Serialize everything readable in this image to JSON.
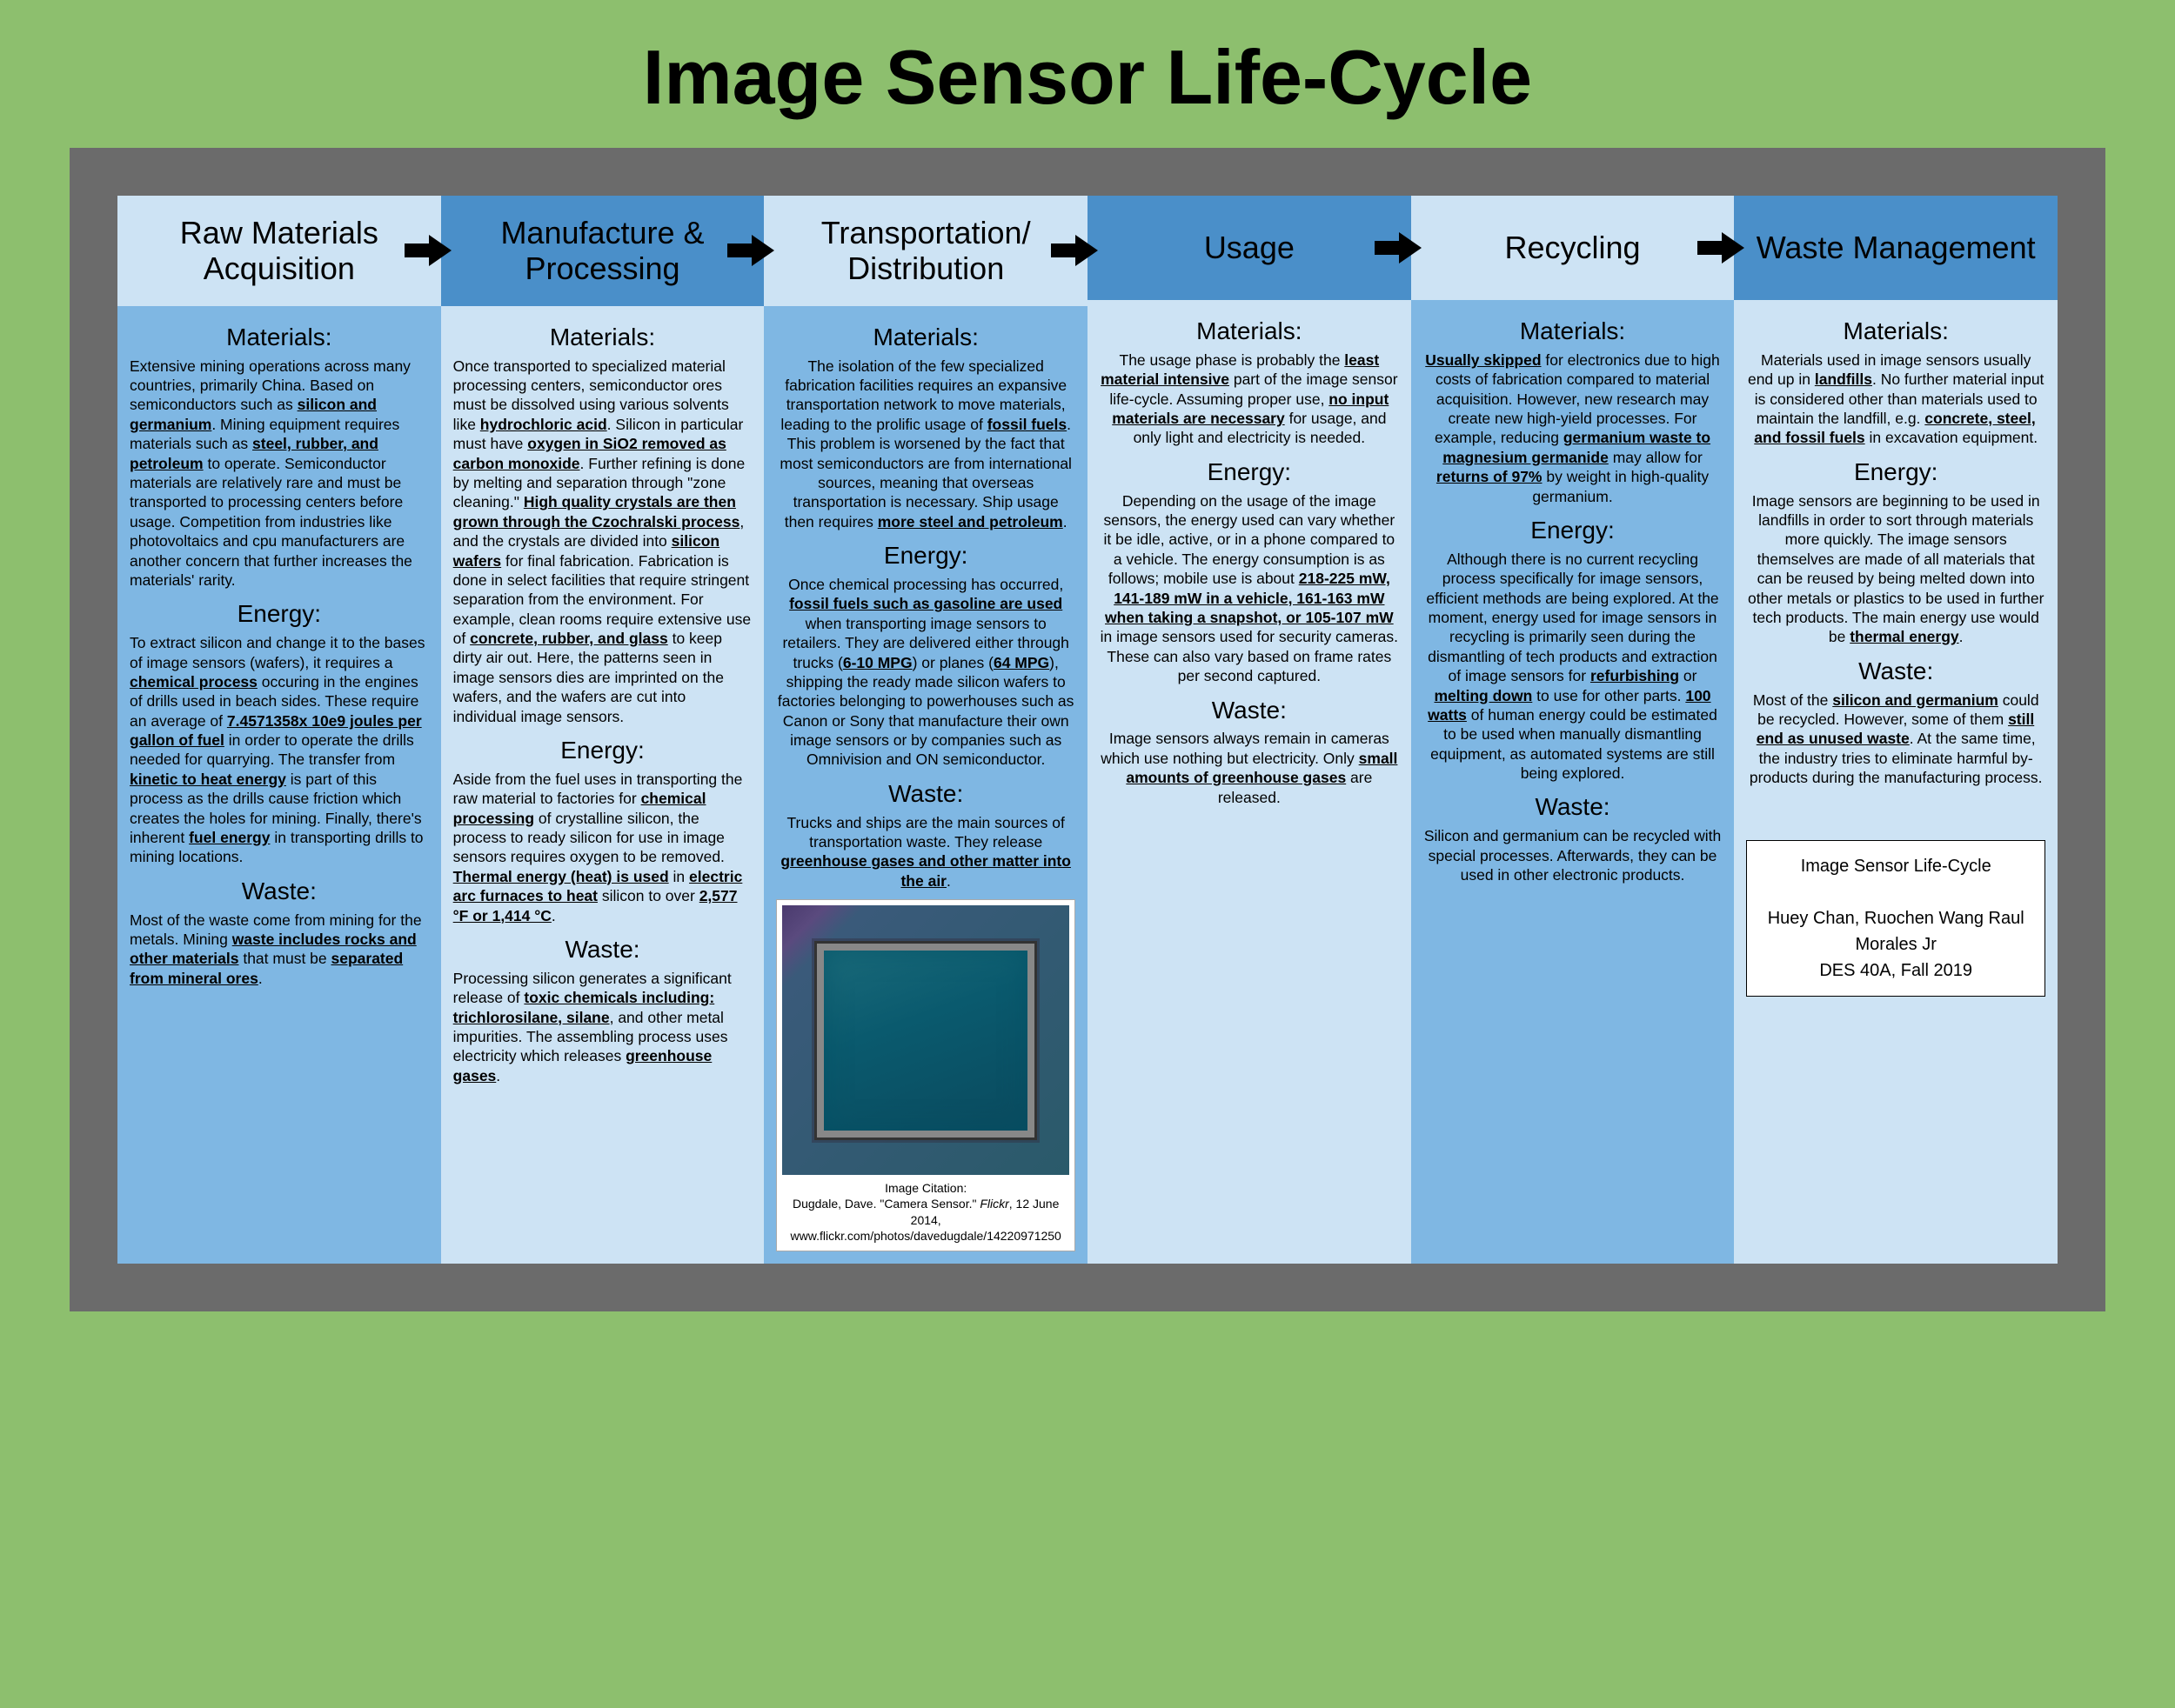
{
  "title": "Image Sensor Life-Cycle",
  "colors": {
    "page_bg": "#8dbf6e",
    "frame_bg": "#6b6b6b",
    "col_light": "#cde3f4",
    "col_mid": "#7fb7e3",
    "col_dark": "#4a8fc9",
    "arrow": "#000000"
  },
  "columns": [
    {
      "header": "Raw Materials Acquisition",
      "header_bg": "#cde3f4",
      "body_bg": "#7fb7e3",
      "has_arrow": true,
      "sections": [
        {
          "subhead": "Materials:",
          "html": "Extensive mining operations across many countries, primarily China. Based on semiconductors such as <span class='u'>silicon and germanium</span>. Mining equipment requires materials such as <span class='u'>steel, rubber, and petroleum</span> to operate. Semiconductor materials are relatively rare and must be transported to processing centers before usage. Competition from industries like photovoltaics and cpu manufacturers are another concern that further increases the materials' rarity."
        },
        {
          "subhead": "Energy:",
          "html": "To extract silicon and change it to the bases of image sensors (wafers), it requires a <span class='u'>chemical process</span> occuring in the engines of drills used in beach sides. These require an average of <span class='u'>7.4571358x 10e9 joules per gallon of fuel</span> in order to operate the drills needed for quarrying. The transfer from <span class='u'>kinetic to heat energy</span> is part of this process as the drills cause friction which creates the holes for mining. Finally, there's inherent <span class='u'>fuel energy</span> in transporting drills to mining locations."
        },
        {
          "subhead": "Waste:",
          "html": "Most of the waste come from mining for the metals. Mining <span class='u'>waste includes rocks and other materials</span> that must be <span class='u'>separated from mineral ores</span>."
        }
      ]
    },
    {
      "header": "Manufacture & Processing",
      "header_bg": "#4a8fc9",
      "body_bg": "#cde3f4",
      "has_arrow": true,
      "sections": [
        {
          "subhead": "Materials:",
          "html": "Once transported to specialized material processing centers, semiconductor ores must be dissolved using various solvents like <span class='u'>hydrochloric acid</span>. Silicon in particular must have <span class='u'>oxygen in SiO2 removed as carbon monoxide</span>. Further refining is done by melting and separation through \"zone cleaning.\" <span class='u'>High quality crystals are then grown through the Czochralski process</span>, and the crystals are divided into <span class='u'>silicon wafers</span> for final fabrication. Fabrication is done in select facilities that require stringent separation from the environment. For example, clean rooms require extensive use of <span class='u'>concrete, rubber, and glass</span> to keep dirty air out. Here, the patterns seen in image sensors dies are imprinted on the wafers, and the wafers are cut into individual image sensors."
        },
        {
          "subhead": "Energy:",
          "html": "Aside from the fuel uses in transporting the raw material to factories for <span class='u'>chemical processing</span> of crystalline silicon, the process to ready silicon for use in image sensors requires oxygen to be removed. <span class='u'>Thermal energy (heat) is used</span> in <span class='u'>electric arc furnaces to heat</span> silicon to over <span class='u'>2,577 °F or 1,414 °C</span>."
        },
        {
          "subhead": "Waste:",
          "html": "Processing silicon generates a significant release of <span class='u'>toxic chemicals including: trichlorosilane, silane</span>, and other metal impurities. The assembling process uses electricity which releases <span class='u'>greenhouse gases</span>."
        }
      ]
    },
    {
      "header": "Transportation/ Distribution",
      "header_bg": "#cde3f4",
      "body_bg": "#7fb7e3",
      "has_arrow": true,
      "sections": [
        {
          "subhead": "Materials:",
          "center": true,
          "html": "The isolation of the few specialized fabrication facilities requires an expansive transportation network to move materials, leading to the prolific usage of <span class='u'>fossil fuels</span>. This problem is worsened by the fact that most semiconductors are from international sources, meaning that overseas transportation is necessary. Ship usage then requires <span class='u'>more steel and petroleum</span>."
        },
        {
          "subhead": "Energy:",
          "center": true,
          "html": "Once chemical processing has occurred, <span class='u'>fossil fuels such as gasoline are used</span> when transporting image sensors to retailers. They are delivered either through trucks (<span class='u'>6-10 MPG</span>) or planes (<span class='u'>64 MPG</span>), shipping the ready made silicon wafers to factories belonging to powerhouses such as Canon or Sony that manufacture their own image sensors or by companies such as Omnivision and ON semiconductor."
        },
        {
          "subhead": "Waste:",
          "center": true,
          "html": "Trucks and ships are the main sources of transportation waste. They release <span class='u'>greenhouse gases and other matter into the air</span>."
        }
      ],
      "has_image": true
    },
    {
      "header": "Usage",
      "header_bg": "#4a8fc9",
      "body_bg": "#cde3f4",
      "has_arrow": true,
      "sections": [
        {
          "subhead": "Materials:",
          "center": true,
          "html": "The usage phase is probably the <span class='u'>least material intensive</span> part of the image sensor life-cycle. Assuming proper use, <span class='u'>no input materials are necessary</span> for usage, and only light and electricity is needed."
        },
        {
          "subhead": "Energy:",
          "center": true,
          "html": "Depending on the usage of the image sensors, the energy used can vary whether it be idle, active, or in a phone compared to a vehicle. The energy consumption is as follows; mobile use is about <span class='u'>218-225 mW, 141-189 mW in a vehicle, 161-163 mW when taking a snapshot, or 105-107 mW</span> in image sensors used for security cameras. These can also vary based on frame rates per second captured."
        },
        {
          "subhead": "Waste:",
          "center": true,
          "html": "Image sensors always remain in cameras which use nothing but electricity. Only <span class='u'>small amounts of greenhouse gases</span> are released."
        }
      ]
    },
    {
      "header": "Recycling",
      "header_bg": "#cde3f4",
      "body_bg": "#7fb7e3",
      "has_arrow": true,
      "sections": [
        {
          "subhead": "Materials:",
          "center": true,
          "html": "<span class='u'>Usually skipped</span> for electronics due to high costs of fabrication compared to material acquisition. However, new research may create new high-yield processes. For example, reducing <span class='u'>germanium waste to magnesium germanide</span> may allow for <span class='u'>returns of 97%</span> by weight in high-quality germanium."
        },
        {
          "subhead": "Energy:",
          "center": true,
          "html": "Although there is no current recycling process specifically for image sensors, efficient methods are being explored. At the moment, energy used for image sensors in recycling is primarily seen during the dismantling of tech products and extraction of image sensors for <span class='u'>refurbishing</span> or <span class='u'>melting down</span> to use for other parts. <span class='u'>100 watts</span> of human energy could be estimated to be used when manually dismantling equipment, as automated systems are still being explored."
        },
        {
          "subhead": "Waste:",
          "center": true,
          "html": "Silicon and germanium can be recycled with special processes. Afterwards, they can be used in other electronic products."
        }
      ]
    },
    {
      "header": "Waste Management",
      "header_bg": "#4a8fc9",
      "body_bg": "#cde3f4",
      "has_arrow": false,
      "sections": [
        {
          "subhead": "Materials:",
          "center": true,
          "html": "Materials used in image sensors usually end up in <span class='u'>landfills</span>. No further material input is considered other than materials used to maintain the landfill, e.g. <span class='u'>concrete, steel, and fossil fuels</span> in excavation equipment."
        },
        {
          "subhead": "Energy:",
          "center": true,
          "html": "Image sensors are beginning to be used in landfills in order to sort through materials more quickly. The image sensors themselves are made of all materials that can be reused by being melted down into other metals or plastics to be used in further tech products. The main energy use would be <span class='u'>thermal energy</span>."
        },
        {
          "subhead": "Waste:",
          "center": true,
          "html": "Most of the <span class='u'>silicon and germanium</span> could be recycled. However, some of them <span class='u'>still end as unused waste</span>. At the same time, the industry tries to eliminate harmful by-products during the manufacturing process."
        }
      ],
      "has_credits": true
    }
  ],
  "image_citation": {
    "label": "Image Citation:",
    "text": "Dugdale, Dave. \"Camera Sensor.\" ",
    "source": "Flickr",
    "rest": ", 12 June 2014, www.flickr.com/photos/davedugdale/14220971250"
  },
  "credits": {
    "line1": "Image Sensor Life-Cycle",
    "line2": "Huey Chan, Ruochen Wang Raul Morales Jr",
    "line3": "DES 40A, Fall 2019"
  }
}
